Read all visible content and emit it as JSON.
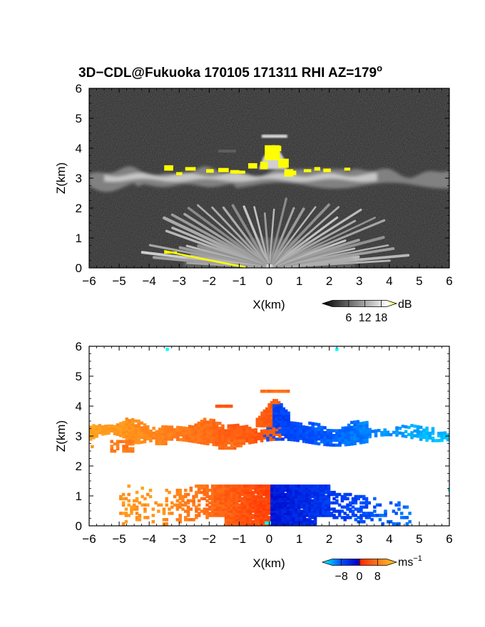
{
  "figure": {
    "title": "3D−CDL@Fukuoka 170105 171311 RHI AZ=179",
    "title_superscript": "o"
  },
  "chart_data": [
    {
      "type": "heatmap",
      "panel": "top",
      "quantity": "backscatter",
      "xlabel": "X(km)",
      "ylabel": "Z(km)",
      "xlim": [
        -6,
        6
      ],
      "ylim": [
        0,
        6
      ],
      "x_ticks": [
        "−6",
        "−5",
        "−4",
        "−3",
        "−2",
        "−1",
        "0",
        "1",
        "2",
        "3",
        "4",
        "5",
        "6"
      ],
      "y_ticks": [
        "0",
        "1",
        "2",
        "3",
        "4",
        "5",
        "6"
      ],
      "colorbar": {
        "unit": "dB",
        "ticks": [
          "6",
          "12",
          "18"
        ],
        "tick_values": [
          6,
          12,
          18
        ],
        "range": [
          0,
          20
        ],
        "colors": [
          "#000000",
          "#ffffff",
          "#ffff00"
        ]
      },
      "background": "#202020",
      "features": [
        {
          "name": "cloud layer",
          "x": [
            -6,
            6
          ],
          "z": [
            2.5,
            3.4
          ]
        },
        {
          "name": "cloud top tower",
          "x": [
            -0.3,
            0.6
          ],
          "z": [
            3.5,
            4.4
          ]
        },
        {
          "name": "high echo above tower",
          "x": [
            -0.2,
            0.6
          ],
          "z": [
            4.35,
            4.45
          ]
        },
        {
          "name": "near-ground fan",
          "x": [
            -3.4,
            4.2
          ],
          "z": [
            0,
            1.3
          ]
        },
        {
          "name": "low beam line",
          "x": [
            -3.5,
            -0.7
          ],
          "z": [
            0.05,
            0.55
          ]
        }
      ]
    },
    {
      "type": "heatmap",
      "panel": "bottom",
      "quantity": "Doppler velocity",
      "xlabel": "X(km)",
      "ylabel": "Z(km)",
      "xlim": [
        -6,
        6
      ],
      "ylim": [
        0,
        6
      ],
      "x_ticks": [
        "−6",
        "−5",
        "−4",
        "−3",
        "−2",
        "−1",
        "0",
        "1",
        "2",
        "3",
        "4",
        "5",
        "6"
      ],
      "y_ticks": [
        "0",
        "1",
        "2",
        "3",
        "4",
        "5",
        "6"
      ],
      "colorbar": {
        "unit": "ms",
        "unit_superscript": "−1",
        "ticks": [
          "−8",
          "0",
          "8"
        ],
        "tick_values": [
          -8,
          0,
          8
        ],
        "range": [
          -12,
          12
        ],
        "colors": [
          "#00ffff",
          "#0050ff",
          "#0000c8",
          "#ff2a00",
          "#ff7a1a",
          "#ffcc22"
        ]
      },
      "background": "#ffffff",
      "features": [
        {
          "name": "cloud layer west",
          "x": [
            -6,
            0
          ],
          "z": [
            2.4,
            3.5
          ],
          "velocity": [
            3,
            9
          ]
        },
        {
          "name": "cloud layer east",
          "x": [
            0,
            6
          ],
          "z": [
            2.4,
            3.5
          ],
          "velocity": [
            -9,
            -4
          ]
        },
        {
          "name": "cloud top tower",
          "x": [
            -0.4,
            0.6
          ],
          "z": [
            3.4,
            4.5
          ],
          "velocity": [
            -3,
            4
          ]
        },
        {
          "name": "boundary layer west",
          "x": [
            -5,
            0
          ],
          "z": [
            0,
            1.3
          ],
          "velocity": [
            2,
            8
          ]
        },
        {
          "name": "boundary layer east",
          "x": [
            0,
            4.7
          ],
          "z": [
            0,
            1.3
          ],
          "velocity": [
            -6,
            -2
          ]
        }
      ]
    }
  ]
}
